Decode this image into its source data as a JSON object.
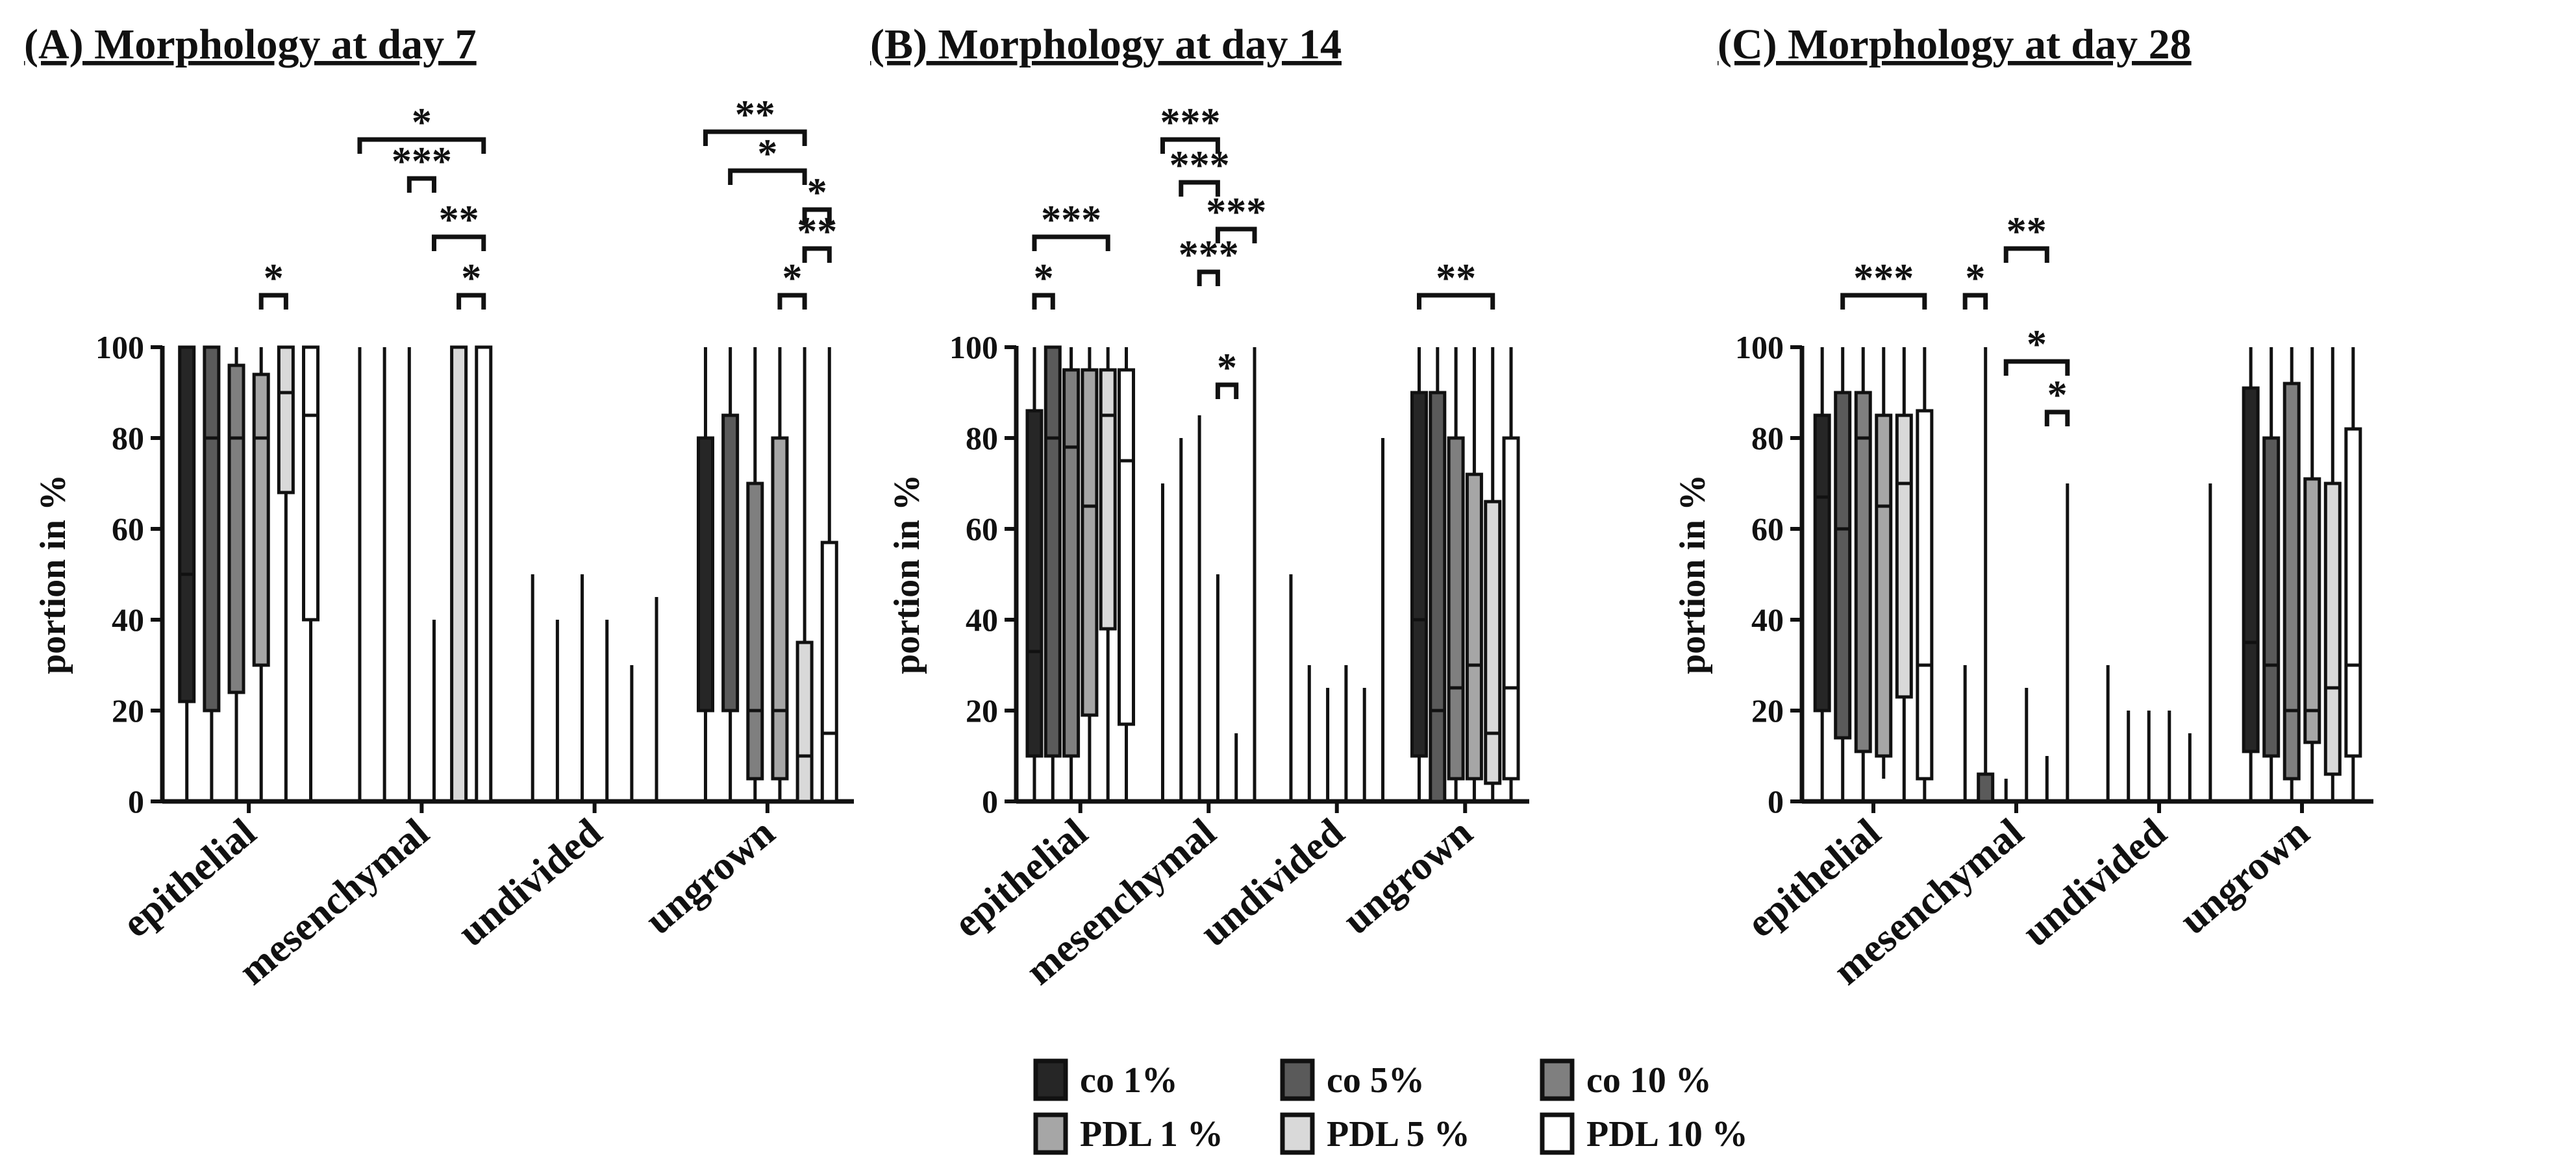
{
  "chart_data": [
    {
      "type": "box",
      "title": "(A) Morphology at day 7",
      "ylabel": "portion in %",
      "ylim": [
        0,
        100
      ],
      "yticks": [
        0,
        20,
        40,
        60,
        80,
        100
      ],
      "categories": [
        "epithelial",
        "mesenchymal",
        "undivided",
        "ungrown"
      ],
      "series_names": [
        "co 1%",
        "co 5%",
        "co 10 %",
        "PDL 1 %",
        "PDL 5 %",
        "PDL 10 %"
      ],
      "boxes": [
        [
          [
            0,
            22,
            50,
            100,
            100
          ],
          [
            0,
            20,
            80,
            100,
            100
          ],
          [
            0,
            24,
            80,
            96,
            100
          ],
          [
            0,
            30,
            80,
            94,
            100
          ],
          [
            0,
            68,
            90,
            100,
            100
          ],
          [
            0,
            40,
            85,
            100,
            100
          ]
        ],
        [
          [
            0,
            0,
            0,
            0,
            100
          ],
          [
            0,
            0,
            0,
            0,
            100
          ],
          [
            0,
            0,
            0,
            0,
            100
          ],
          [
            0,
            0,
            0,
            0,
            40
          ],
          [
            0,
            0,
            0,
            100,
            100
          ],
          [
            0,
            0,
            0,
            100,
            100
          ]
        ],
        [
          [
            0,
            0,
            0,
            0,
            50
          ],
          [
            0,
            0,
            0,
            0,
            40
          ],
          [
            0,
            0,
            0,
            0,
            50
          ],
          [
            0,
            0,
            0,
            0,
            40
          ],
          [
            0,
            0,
            0,
            0,
            30
          ],
          [
            0,
            0,
            0,
            0,
            45
          ]
        ],
        [
          [
            0,
            20,
            20,
            80,
            100
          ],
          [
            0,
            20,
            20,
            85,
            100
          ],
          [
            0,
            5,
            20,
            70,
            100
          ],
          [
            0,
            5,
            20,
            80,
            100
          ],
          [
            0,
            0,
            10,
            35,
            100
          ],
          [
            0,
            0,
            15,
            57,
            100
          ]
        ]
      ],
      "significance": [
        {
          "label": "*",
          "category": 0,
          "from": 3,
          "to": 4,
          "level": 1
        },
        {
          "label": "*",
          "category": 1,
          "from": 0,
          "to": 5,
          "level": 5
        },
        {
          "label": "***",
          "category": 1,
          "from": 2,
          "to": 3,
          "level": 4
        },
        {
          "label": "**",
          "category": 1,
          "from": 3,
          "to": 5,
          "level": 2.5
        },
        {
          "label": "*",
          "category": 1,
          "from": 4,
          "to": 5,
          "level": 1
        },
        {
          "label": "**",
          "category": 3,
          "from": 0,
          "to": 4,
          "level": 5.2
        },
        {
          "label": "*",
          "category": 3,
          "from": 1,
          "to": 4,
          "level": 4.2
        },
        {
          "label": "*",
          "category": 3,
          "from": 4,
          "to": 5,
          "level": 3.2
        },
        {
          "label": "**",
          "category": 3,
          "from": 4,
          "to": 5,
          "level": 2.2
        },
        {
          "label": "*",
          "category": 3,
          "from": 3,
          "to": 4,
          "level": 1
        }
      ]
    },
    {
      "type": "box",
      "title": "(B) Morphology at day 14",
      "ylabel": "portion in %",
      "ylim": [
        0,
        100
      ],
      "yticks": [
        0,
        20,
        40,
        60,
        80,
        100
      ],
      "categories": [
        "epithelial",
        "mesenchymal",
        "undivided",
        "ungrown"
      ],
      "series_names": [
        "co 1%",
        "co 5%",
        "co 10 %",
        "PDL 1 %",
        "PDL 5 %",
        "PDL 10 %"
      ],
      "boxes": [
        [
          [
            0,
            10,
            33,
            86,
            100
          ],
          [
            0,
            10,
            80,
            100,
            100
          ],
          [
            0,
            10,
            78,
            95,
            100
          ],
          [
            0,
            19,
            65,
            95,
            100
          ],
          [
            0,
            38,
            85,
            95,
            100
          ],
          [
            0,
            17,
            75,
            95,
            100
          ]
        ],
        [
          [
            0,
            0,
            0,
            0,
            70
          ],
          [
            0,
            0,
            0,
            0,
            80
          ],
          [
            0,
            0,
            0,
            0,
            85
          ],
          [
            0,
            0,
            0,
            0,
            50
          ],
          [
            0,
            0,
            0,
            0,
            15
          ],
          [
            0,
            0,
            0,
            0,
            100
          ]
        ],
        [
          [
            0,
            0,
            0,
            0,
            50
          ],
          [
            0,
            0,
            0,
            0,
            30
          ],
          [
            0,
            0,
            0,
            0,
            25
          ],
          [
            0,
            0,
            0,
            0,
            30
          ],
          [
            0,
            0,
            0,
            0,
            25
          ],
          [
            0,
            0,
            0,
            0,
            80
          ]
        ],
        [
          [
            0,
            10,
            40,
            90,
            100
          ],
          [
            0,
            0,
            20,
            90,
            100
          ],
          [
            0,
            5,
            25,
            80,
            100
          ],
          [
            0,
            5,
            30,
            72,
            100
          ],
          [
            0,
            4,
            15,
            66,
            100
          ],
          [
            0,
            5,
            25,
            80,
            100
          ]
        ]
      ],
      "significance": [
        {
          "label": "*",
          "category": 0,
          "from": 0,
          "to": 1,
          "level": 1
        },
        {
          "label": "***",
          "category": 0,
          "from": 0,
          "to": 4,
          "level": 2.5
        },
        {
          "label": "***",
          "category": 1,
          "from": 0,
          "to": 3,
          "level": 5
        },
        {
          "label": "***",
          "category": 1,
          "from": 1,
          "to": 3,
          "level": 3.9
        },
        {
          "label": "***",
          "category": 1,
          "from": 3,
          "to": 5,
          "level": 2.7
        },
        {
          "label": "***",
          "category": 1,
          "from": 2,
          "to": 3,
          "level": 1.6
        },
        {
          "label": "*",
          "category": 1,
          "from": 3,
          "to": 4,
          "level": -1.3
        },
        {
          "label": "**",
          "category": 3,
          "from": 0,
          "to": 4,
          "level": 1
        }
      ]
    },
    {
      "type": "box",
      "title": "(C) Morphology at day 28",
      "ylabel": "portion in %",
      "ylim": [
        0,
        100
      ],
      "yticks": [
        0,
        20,
        40,
        60,
        80,
        100
      ],
      "categories": [
        "epithelial",
        "mesenchymal",
        "undivided",
        "ungrown"
      ],
      "series_names": [
        "co 1%",
        "co 5%",
        "co 10 %",
        "PDL 1 %",
        "PDL 5 %",
        "PDL 10 %"
      ],
      "boxes": [
        [
          [
            0,
            20,
            67,
            85,
            100
          ],
          [
            0,
            14,
            60,
            90,
            100
          ],
          [
            0,
            11,
            80,
            90,
            100
          ],
          [
            5,
            10,
            65,
            85,
            100
          ],
          [
            0,
            23,
            70,
            85,
            100
          ],
          [
            0,
            5,
            30,
            86,
            100
          ]
        ],
        [
          [
            0,
            0,
            0,
            0,
            30
          ],
          [
            0,
            0,
            0,
            6,
            100
          ],
          [
            0,
            0,
            0,
            0,
            5
          ],
          [
            0,
            0,
            0,
            0,
            25
          ],
          [
            0,
            0,
            0,
            0,
            10
          ],
          [
            0,
            0,
            0,
            0,
            70
          ]
        ],
        [
          [
            0,
            0,
            0,
            0,
            30
          ],
          [
            0,
            0,
            0,
            0,
            20
          ],
          [
            0,
            0,
            0,
            0,
            20
          ],
          [
            0,
            0,
            0,
            0,
            20
          ],
          [
            0,
            0,
            0,
            0,
            15
          ],
          [
            0,
            0,
            0,
            0,
            70
          ]
        ],
        [
          [
            0,
            11,
            35,
            91,
            100
          ],
          [
            0,
            10,
            30,
            80,
            100
          ],
          [
            0,
            5,
            20,
            92,
            100
          ],
          [
            0,
            13,
            20,
            71,
            100
          ],
          [
            0,
            6,
            25,
            70,
            100
          ],
          [
            0,
            10,
            30,
            82,
            100
          ]
        ]
      ],
      "significance": [
        {
          "label": "***",
          "category": 0,
          "from": 1,
          "to": 5,
          "level": 1
        },
        {
          "label": "*",
          "category": 1,
          "from": 0,
          "to": 1,
          "level": 1
        },
        {
          "label": "**",
          "category": 1,
          "from": 2,
          "to": 4,
          "level": 2.2
        },
        {
          "label": "*",
          "category": 1,
          "from": 2,
          "to": 5,
          "level": -0.7
        },
        {
          "label": "*",
          "category": 1,
          "from": 4,
          "to": 5,
          "level": -2
        }
      ]
    }
  ],
  "legend": {
    "items": [
      {
        "label": "co 1%",
        "color": "#262626"
      },
      {
        "label": "co 5%",
        "color": "#5a5a5a"
      },
      {
        "label": "co 10 %",
        "color": "#7f7f7f"
      },
      {
        "label": "PDL 1 %",
        "color": "#a6a6a6"
      },
      {
        "label": "PDL 5 %",
        "color": "#d9d9d9"
      },
      {
        "label": "PDL 10 %",
        "color": "#ffffff"
      }
    ]
  }
}
